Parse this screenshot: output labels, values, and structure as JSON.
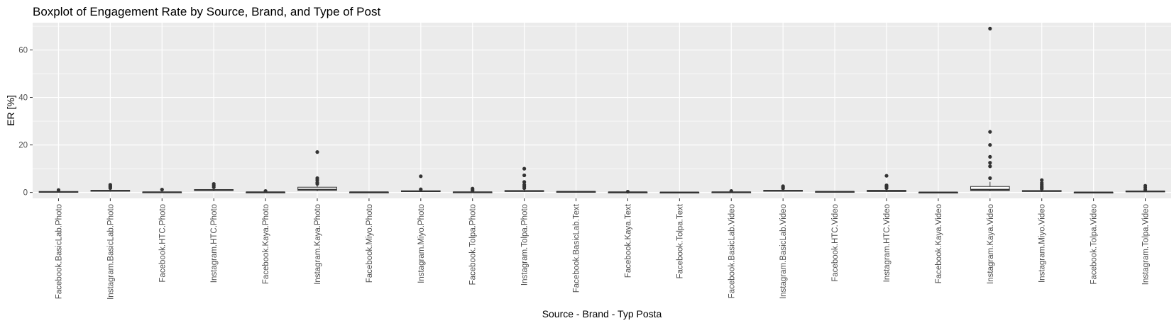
{
  "chart_data": {
    "type": "boxplot",
    "title": "Boxplot of Engagement Rate by Source, Brand, and Type of Post",
    "xlabel": "Source - Brand - Typ Posta",
    "ylabel": "ER [%]",
    "ylim": [
      -2.5,
      71.5
    ],
    "yticks": [
      0,
      20,
      40,
      60
    ],
    "grid": true,
    "categories": [
      "Facebook.BasicLab.Photo",
      "Instagram.BasicLab.Photo",
      "Facebook.HTC.Photo",
      "Instagram.HTC.Photo",
      "Facebook.Kaya.Photo",
      "Instagram.Kaya.Photo",
      "Facebook.Miyo.Photo",
      "Instagram.Miyo.Photo",
      "Facebook.Tolpa.Photo",
      "Instagram.Tolpa.Photo",
      "Facebook.BasicLab.Text",
      "Facebook.Kaya.Text",
      "Facebook.Tolpa.Text",
      "Facebook.BasicLab.Video",
      "Instagram.BasicLab.Video",
      "Facebook.HTC.Video",
      "Instagram.HTC.Video",
      "Facebook.Kaya.Video",
      "Instagram.Kaya.Video",
      "Instagram.Miyo.Video",
      "Facebook.Tolpa.Video",
      "Instagram.Tolpa.Video"
    ],
    "boxes": [
      {
        "min": 0.0,
        "q1": 0.1,
        "median": 0.2,
        "q3": 0.4,
        "max": 0.8,
        "outliers": [
          1.0
        ]
      },
      {
        "min": 0.3,
        "q1": 0.5,
        "median": 0.7,
        "q3": 0.9,
        "max": 1.4,
        "outliers": [
          1.8,
          2.3,
          2.7,
          3.2
        ]
      },
      {
        "min": 0.0,
        "q1": 0.05,
        "median": 0.1,
        "q3": 0.2,
        "max": 0.4,
        "outliers": [
          1.2
        ]
      },
      {
        "min": 0.5,
        "q1": 0.8,
        "median": 1.0,
        "q3": 1.2,
        "max": 1.6,
        "outliers": [
          2.2,
          3.0,
          3.6
        ]
      },
      {
        "min": 0.0,
        "q1": 0.05,
        "median": 0.1,
        "q3": 0.15,
        "max": 0.3,
        "outliers": [
          0.6
        ]
      },
      {
        "min": 0.5,
        "q1": 0.9,
        "median": 1.2,
        "q3": 2.2,
        "max": 3.0,
        "outliers": [
          3.6,
          4.2,
          5.2,
          6.0,
          17.0
        ]
      },
      {
        "min": 0.0,
        "q1": 0.05,
        "median": 0.1,
        "q3": 0.15,
        "max": 0.2,
        "outliers": []
      },
      {
        "min": 0.2,
        "q1": 0.4,
        "median": 0.5,
        "q3": 0.7,
        "max": 1.0,
        "outliers": [
          1.3,
          6.8
        ]
      },
      {
        "min": 0.0,
        "q1": 0.05,
        "median": 0.1,
        "q3": 0.2,
        "max": 0.4,
        "outliers": [
          0.7,
          1.1,
          1.6
        ]
      },
      {
        "min": 0.2,
        "q1": 0.4,
        "median": 0.6,
        "q3": 0.8,
        "max": 1.3,
        "outliers": [
          1.8,
          2.5,
          3.2,
          4.4,
          7.2,
          10.0
        ]
      },
      {
        "min": 0.1,
        "q1": 0.2,
        "median": 0.3,
        "q3": 0.4,
        "max": 0.5,
        "outliers": []
      },
      {
        "min": 0.0,
        "q1": 0.05,
        "median": 0.1,
        "q3": 0.15,
        "max": 0.2,
        "outliers": [
          0.3
        ]
      },
      {
        "min": 0.0,
        "q1": 0.03,
        "median": 0.05,
        "q3": 0.08,
        "max": 0.1,
        "outliers": []
      },
      {
        "min": 0.0,
        "q1": 0.05,
        "median": 0.1,
        "q3": 0.2,
        "max": 0.3,
        "outliers": [
          0.6
        ]
      },
      {
        "min": 0.3,
        "q1": 0.5,
        "median": 0.7,
        "q3": 0.9,
        "max": 1.3,
        "outliers": [
          1.7,
          2.2,
          2.6
        ]
      },
      {
        "min": 0.1,
        "q1": 0.2,
        "median": 0.3,
        "q3": 0.4,
        "max": 0.5,
        "outliers": []
      },
      {
        "min": 0.2,
        "q1": 0.4,
        "median": 0.6,
        "q3": 0.9,
        "max": 1.3,
        "outliers": [
          1.8,
          2.4,
          3.0,
          7.0
        ]
      },
      {
        "min": 0.0,
        "q1": 0.03,
        "median": 0.05,
        "q3": 0.08,
        "max": 0.1,
        "outliers": []
      },
      {
        "min": 0.5,
        "q1": 0.8,
        "median": 1.2,
        "q3": 2.5,
        "max": 4.5,
        "outliers": [
          6.0,
          11.0,
          12.5,
          15.0,
          20.0,
          25.5,
          69.0
        ]
      },
      {
        "min": 0.2,
        "q1": 0.4,
        "median": 0.6,
        "q3": 0.8,
        "max": 1.2,
        "outliers": [
          1.5,
          2.0,
          2.5,
          3.2,
          4.0,
          5.2
        ]
      },
      {
        "min": 0.0,
        "q1": 0.03,
        "median": 0.05,
        "q3": 0.08,
        "max": 0.1,
        "outliers": []
      },
      {
        "min": 0.2,
        "q1": 0.3,
        "median": 0.4,
        "q3": 0.6,
        "max": 0.8,
        "outliers": [
          1.1,
          2.0,
          2.8
        ]
      }
    ],
    "colors": {
      "panel": "#ebebeb",
      "grid": "#ffffff",
      "box_fill": "#ffffff",
      "box_line": "#333333",
      "outlier": "#333333",
      "tick_text": "#4d4d4d"
    }
  }
}
